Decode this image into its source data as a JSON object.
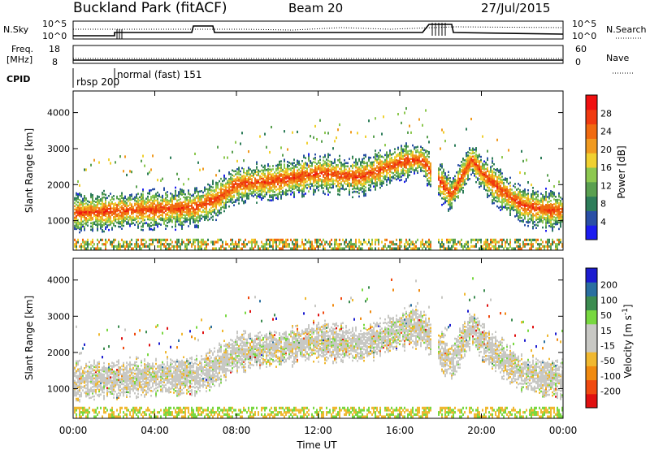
{
  "header": {
    "site": "Buckland Park (fitACF)",
    "beam": "Beam 20",
    "date": "27/Jul/2015"
  },
  "status_panels": {
    "nsky": {
      "label": "N.Sky",
      "ticks": [
        "10^5",
        "10^0"
      ],
      "right_label": "N.Search",
      "right_ticks": [
        "10^5",
        "10^0"
      ]
    },
    "freq": {
      "label_line1": "Freq.",
      "label_line2": "[MHz]",
      "ticks": [
        "18",
        "8"
      ],
      "right_label": "Nave",
      "right_ticks": [
        "60",
        "0"
      ]
    },
    "cpid": {
      "label": "CPID",
      "modes": [
        "rbsp 200",
        "normal (fast) 151"
      ]
    }
  },
  "colors": {
    "power": [
      "#1c1cf0",
      "#2a4fa6",
      "#2e7d5a",
      "#5aa050",
      "#8dc850",
      "#f0d030",
      "#f09a20",
      "#f06a10",
      "#f03a10",
      "#f01010"
    ],
    "velocity": [
      "#e01010",
      "#f04a10",
      "#f08a10",
      "#f0b830",
      "#c8c8c4",
      "#c8c8c4",
      "#78d840",
      "#3c8c50",
      "#2a6fa0",
      "#1c1cd0"
    ]
  },
  "chart_data": [
    {
      "type": "heatmap",
      "name": "power",
      "ylabel": "Slant Range [km]",
      "yticks": [
        "4000",
        "3000",
        "2000",
        "1000"
      ],
      "ytick_values": [
        4000,
        3000,
        2000,
        1000
      ],
      "ylim": [
        180,
        4600
      ],
      "xlim": [
        0,
        24
      ],
      "colorbar": {
        "label": "Power [dB]",
        "ticks": [
          "28",
          "24",
          "20",
          "16",
          "12",
          "8",
          "4"
        ],
        "range": [
          0,
          32
        ]
      },
      "echo_band": {
        "hours": [
          0,
          2,
          4,
          6,
          7,
          8,
          10,
          12,
          14,
          16,
          17,
          18.5,
          19.5,
          20,
          21,
          22,
          23,
          24
        ],
        "range_km": [
          1200,
          1250,
          1300,
          1350,
          1600,
          2000,
          2100,
          2300,
          2200,
          2600,
          2700,
          1700,
          2700,
          2300,
          1800,
          1400,
          1300,
          1250
        ]
      }
    },
    {
      "type": "heatmap",
      "name": "velocity",
      "ylabel": "Slant Range [km]",
      "yticks": [
        "4000",
        "3000",
        "2000",
        "1000"
      ],
      "ytick_values": [
        4000,
        3000,
        2000,
        1000
      ],
      "ylim": [
        180,
        4600
      ],
      "xlim": [
        0,
        24
      ],
      "colorbar": {
        "label": "Velocity [m s^-1]",
        "ticks": [
          "200",
          "100",
          "50",
          "15",
          "-15",
          "-50",
          "-100",
          "-200"
        ]
      }
    }
  ],
  "xaxis": {
    "label": "Time UT",
    "ticks": [
      "00:00",
      "04:00",
      "08:00",
      "12:00",
      "16:00",
      "20:00",
      "00:00"
    ],
    "tick_hours": [
      0,
      4,
      8,
      12,
      16,
      20,
      24
    ]
  }
}
